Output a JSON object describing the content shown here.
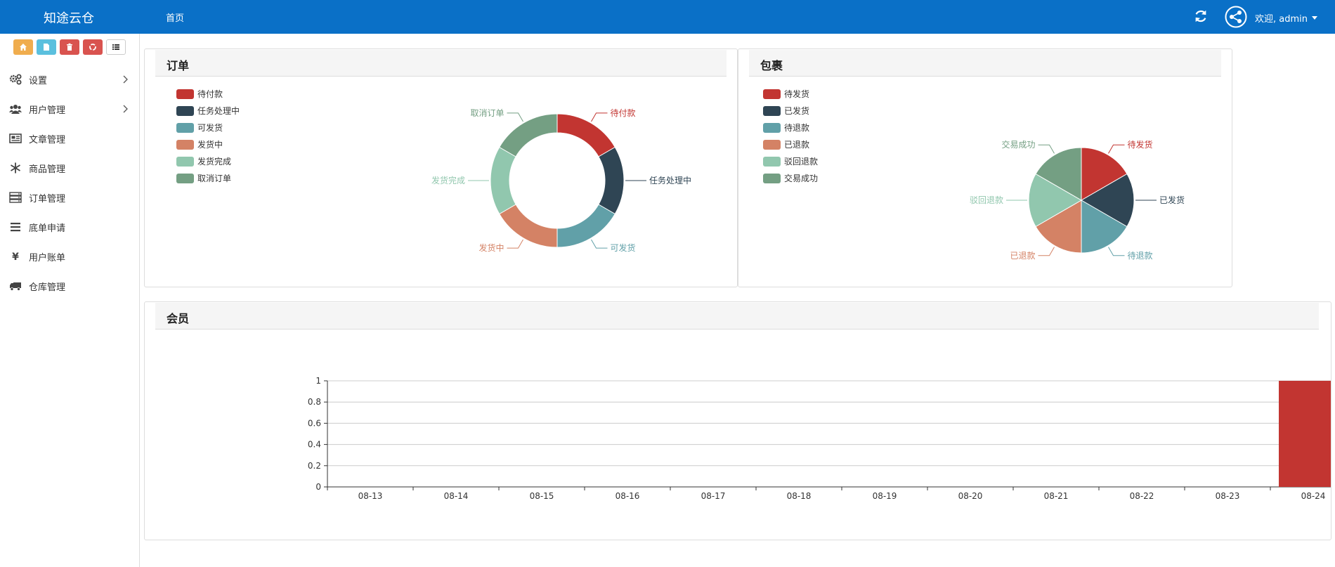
{
  "header": {
    "brand": "知途云仓",
    "nav_home": "首页",
    "welcome": "欢迎, admin",
    "color": "#0a70c7"
  },
  "quick_buttons": [
    {
      "icon": "home-icon",
      "color": "#f0ad4e"
    },
    {
      "icon": "file-icon",
      "color": "#5bc0de"
    },
    {
      "icon": "trash-icon",
      "color": "#d9534f"
    },
    {
      "icon": "recycle-icon",
      "color": "#d9534f"
    },
    {
      "icon": "list-icon",
      "color": "#ffffff"
    }
  ],
  "sidebar": {
    "items": [
      {
        "label": "设置",
        "icon": "gears-icon",
        "expandable": true
      },
      {
        "label": "用户管理",
        "icon": "users-icon",
        "expandable": true
      },
      {
        "label": "文章管理",
        "icon": "newspaper-icon",
        "expandable": false
      },
      {
        "label": "商品管理",
        "icon": "snowflake-icon",
        "expandable": false
      },
      {
        "label": "订单管理",
        "icon": "server-icon",
        "expandable": false
      },
      {
        "label": "底单申请",
        "icon": "bars-icon",
        "expandable": false
      },
      {
        "label": "用户账单",
        "icon": "yen-icon",
        "expandable": false
      },
      {
        "label": "仓库管理",
        "icon": "truck-icon",
        "expandable": false
      }
    ]
  },
  "panels": {
    "orders_title": "订单",
    "parcels_title": "包裹",
    "members_title": "会员"
  },
  "chart_data": [
    {
      "type": "pie",
      "subtype": "donut",
      "title": "订单",
      "legend_position": "top-left",
      "categories": [
        "待付款",
        "任务处理中",
        "可发货",
        "发货中",
        "发货完成",
        "取消订单"
      ],
      "values": [
        1,
        1,
        1,
        1,
        1,
        1
      ],
      "colors": [
        "#c23531",
        "#2f4554",
        "#61a0a8",
        "#d48265",
        "#91c7ae",
        "#749f83"
      ]
    },
    {
      "type": "pie",
      "title": "包裹",
      "legend_position": "top-left",
      "categories": [
        "待发货",
        "已发货",
        "待退款",
        "已退款",
        "驳回退款",
        "交易成功"
      ],
      "values": [
        1,
        1,
        1,
        1,
        1,
        1
      ],
      "colors": [
        "#c23531",
        "#2f4554",
        "#61a0a8",
        "#d48265",
        "#91c7ae",
        "#749f83"
      ]
    },
    {
      "type": "bar",
      "title": "会员",
      "categories": [
        "08-13",
        "08-14",
        "08-15",
        "08-16",
        "08-17",
        "08-18",
        "08-19",
        "08-20",
        "08-21",
        "08-22",
        "08-23",
        "08-24"
      ],
      "values": [
        0,
        0,
        0,
        0,
        0,
        0,
        0,
        0,
        0,
        0,
        0,
        1
      ],
      "ylim": [
        0,
        1
      ],
      "yticks": [
        "0",
        "0.2",
        "0.4",
        "0.6",
        "0.8",
        "1"
      ],
      "grid": true,
      "color": "#c23531"
    }
  ]
}
